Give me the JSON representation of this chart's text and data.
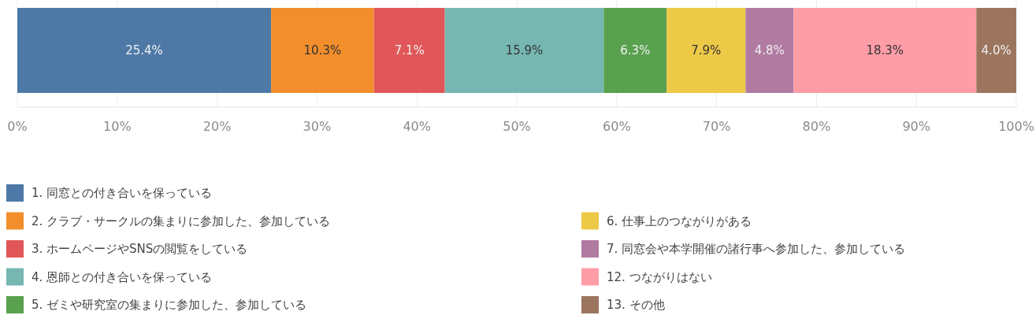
{
  "chart_data": {
    "type": "bar",
    "stacked": true,
    "orientation": "horizontal",
    "categories": [
      null
    ],
    "xlim": [
      0,
      100
    ],
    "xticks": [
      {
        "value": 0,
        "label": "0%"
      },
      {
        "value": 10,
        "label": "10%"
      },
      {
        "value": 20,
        "label": "20%"
      },
      {
        "value": 30,
        "label": "30%"
      },
      {
        "value": 40,
        "label": "40%"
      },
      {
        "value": 50,
        "label": "50%"
      },
      {
        "value": 60,
        "label": "60%"
      },
      {
        "value": 70,
        "label": "70%"
      },
      {
        "value": 80,
        "label": "80%"
      },
      {
        "value": 90,
        "label": "90%"
      },
      {
        "value": 100,
        "label": "100%"
      }
    ],
    "grid": "x",
    "legend": "bottom",
    "series": [
      {
        "name": "1. 同窓との付き合いを保っている",
        "color": "#4e79a7",
        "values": [
          25.4
        ],
        "value_labels": [
          "25.4%"
        ]
      },
      {
        "name": "2. クラブ・サークルの集まりに参加した、参加している",
        "color": "#f28e2b",
        "values": [
          10.3
        ],
        "value_labels": [
          "10.3%"
        ]
      },
      {
        "name": "3. ホームページやSNSの閲覧をしている",
        "color": "#e15759",
        "values": [
          7.1
        ],
        "value_labels": [
          "7.1%"
        ]
      },
      {
        "name": "4. 恩師との付き合いを保っている",
        "color": "#76b7b2",
        "values": [
          15.9
        ],
        "value_labels": [
          "15.9%"
        ]
      },
      {
        "name": "5. ゼミや研究室の集まりに参加した、参加している",
        "color": "#59a14f",
        "values": [
          6.3
        ],
        "value_labels": [
          "6.3%"
        ]
      },
      {
        "name": "6. 仕事上のつながりがある",
        "color": "#edc948",
        "values": [
          7.9
        ],
        "value_labels": [
          "7.9%"
        ]
      },
      {
        "name": "7. 同窓会や本学開催の諸行事へ参加した、参加している",
        "color": "#b07aa1",
        "values": [
          4.8
        ],
        "value_labels": [
          "4.8%"
        ]
      },
      {
        "name": "12. つながりはない",
        "color": "#ff9da7",
        "values": [
          18.3
        ],
        "value_labels": [
          "18.3%"
        ]
      },
      {
        "name": "13. その他",
        "color": "#9c755f",
        "values": [
          4.0
        ],
        "value_labels": [
          "4.0%"
        ]
      }
    ]
  }
}
